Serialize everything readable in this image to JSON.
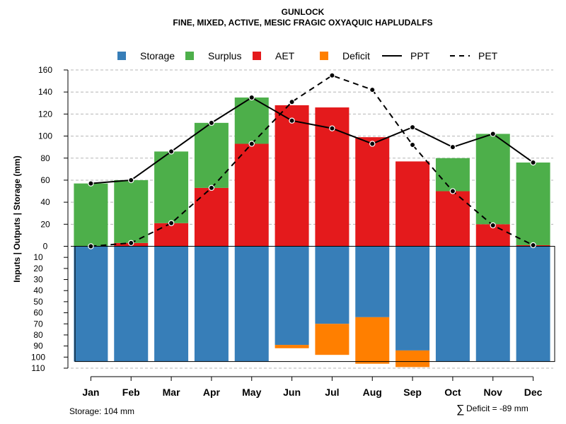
{
  "chart_data": {
    "type": "water-balance",
    "title": "GUNLOCK",
    "subtitle": "FINE, MIXED, ACTIVE, MESIC FRAGIC OXYAQUIC HAPLUDALFS",
    "ylabel": "Inputs | Outputs | Storage    (mm)",
    "ylim_upper": [
      0,
      160
    ],
    "ylim_lower": [
      0,
      110
    ],
    "yticks_upper": [
      "0",
      "20",
      "40",
      "60",
      "80",
      "100",
      "120",
      "140",
      "160"
    ],
    "yticks_lower": [
      "10",
      "20",
      "30",
      "40",
      "50",
      "60",
      "70",
      "80",
      "90",
      "100",
      "110"
    ],
    "categories": [
      "Jan",
      "Feb",
      "Mar",
      "Apr",
      "May",
      "Jun",
      "Jul",
      "Aug",
      "Sep",
      "Oct",
      "Nov",
      "Dec"
    ],
    "legend": [
      {
        "key": "storage",
        "label": "Storage",
        "type": "square",
        "color": "#377eb8"
      },
      {
        "key": "surplus",
        "label": "Surplus",
        "type": "square",
        "color": "#4daf4a"
      },
      {
        "key": "aet",
        "label": "AET",
        "type": "square",
        "color": "#e41a1c"
      },
      {
        "key": "deficit",
        "label": "Deficit",
        "type": "square",
        "color": "#ff7f00"
      },
      {
        "key": "ppt",
        "label": "PPT",
        "type": "solid-line",
        "color": "#000000"
      },
      {
        "key": "pet",
        "label": "PET",
        "type": "dashed-line",
        "color": "#000000"
      }
    ],
    "aet": [
      0,
      3,
      21,
      53,
      93,
      128,
      126,
      99,
      77,
      50,
      20,
      1
    ],
    "surplus": [
      57,
      57,
      65,
      59,
      42,
      0,
      0,
      0,
      0,
      30,
      82,
      75
    ],
    "storage": [
      104,
      104,
      104,
      104,
      104,
      89,
      70,
      64,
      94,
      104,
      104,
      104
    ],
    "deficit": [
      0,
      0,
      0,
      0,
      0,
      3,
      28,
      42,
      15,
      0,
      0,
      0
    ],
    "ppt": [
      57,
      60,
      86,
      112,
      135,
      114,
      107,
      93,
      108,
      90,
      102,
      76
    ],
    "pet": [
      0,
      3,
      21,
      53,
      93,
      131,
      155,
      142,
      92,
      50,
      19,
      1
    ],
    "storage_capacity": 104
  },
  "footer": {
    "storage_text": "Storage: 104 mm",
    "deficit_symbol": "∑",
    "deficit_text": "Deficit = -89 mm"
  }
}
